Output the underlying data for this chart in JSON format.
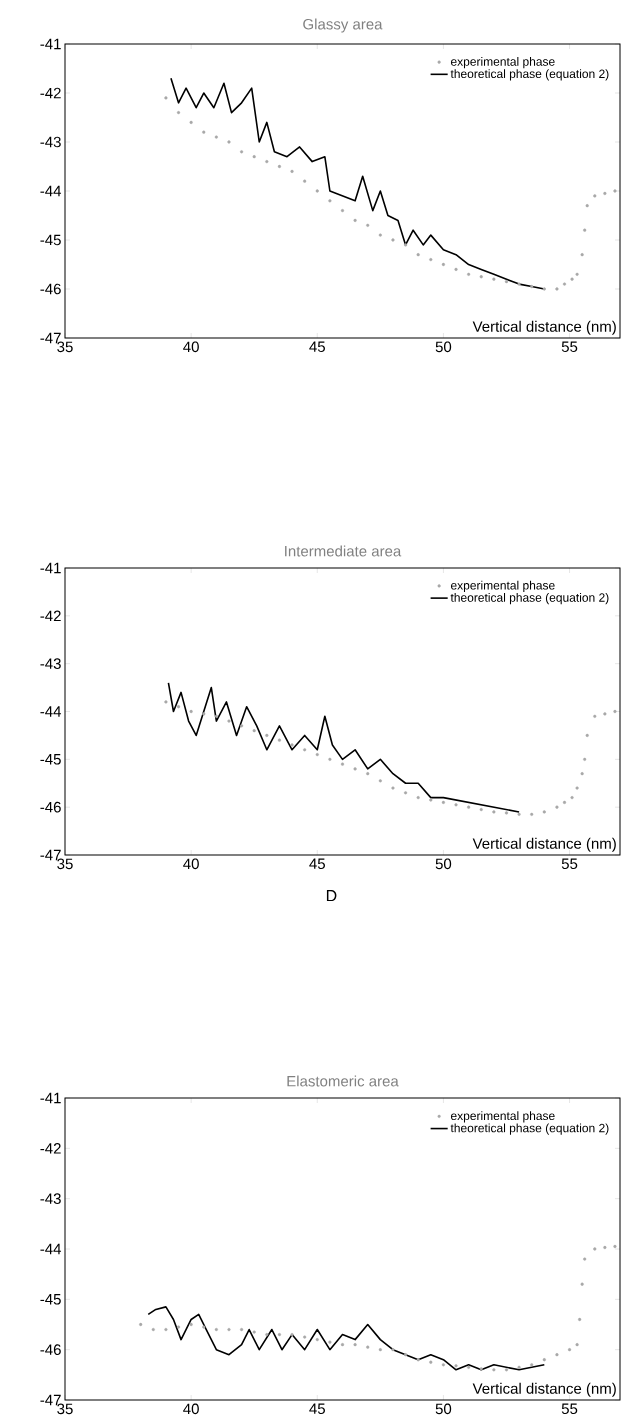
{
  "chart_data": [
    {
      "type": "line",
      "title": "Glassy area",
      "xlabel": "Vertical distance (nm)",
      "xlim": [
        35,
        57
      ],
      "ylim": [
        -47,
        -41
      ],
      "xticks": [
        35,
        40,
        45,
        50,
        55
      ],
      "yticks": [
        -47,
        -46,
        -45,
        -44,
        -43,
        -42,
        -41
      ],
      "legend": "top right",
      "series": [
        {
          "name": "experimental phase",
          "type": "scatter",
          "marker": "circle",
          "color": "#a8a8a8",
          "x": [
            39,
            39.5,
            40,
            40.5,
            41,
            41.5,
            42,
            42.5,
            43,
            43.5,
            44,
            44.5,
            45,
            45.5,
            46,
            46.5,
            47,
            47.5,
            48,
            48.5,
            49,
            49.5,
            50,
            50.5,
            51,
            51.5,
            52,
            52.5,
            53,
            53.5,
            54,
            54.5,
            54.8,
            55.1,
            55.3,
            55.5,
            55.6,
            55.7,
            56,
            56.4,
            56.8
          ],
          "values": [
            -42.1,
            -42.4,
            -42.6,
            -42.8,
            -42.9,
            -43.0,
            -43.2,
            -43.3,
            -43.4,
            -43.5,
            -43.6,
            -43.8,
            -44.0,
            -44.2,
            -44.4,
            -44.6,
            -44.7,
            -44.9,
            -45.0,
            -45.1,
            -45.3,
            -45.4,
            -45.5,
            -45.6,
            -45.7,
            -45.75,
            -45.8,
            -45.85,
            -45.9,
            -45.95,
            -46.0,
            -46.0,
            -45.9,
            -45.8,
            -45.7,
            -45.3,
            -44.8,
            -44.3,
            -44.1,
            -44.05,
            -44.0
          ]
        },
        {
          "name": "theoretical phase (equation 2)",
          "type": "line",
          "marker": "none",
          "color": "#000000",
          "x": [
            39.2,
            39.5,
            39.8,
            40.2,
            40.5,
            40.9,
            41.3,
            41.6,
            42,
            42.4,
            42.7,
            43,
            43.3,
            43.8,
            44.3,
            44.8,
            45.3,
            45.5,
            46,
            46.5,
            46.8,
            47.2,
            47.5,
            47.8,
            48.2,
            48.5,
            48.8,
            49.2,
            49.5,
            50,
            50.5,
            51,
            51.5,
            52,
            52.5,
            53,
            53.5,
            54
          ],
          "values": [
            -41.7,
            -42.2,
            -41.9,
            -42.3,
            -42.0,
            -42.3,
            -41.8,
            -42.4,
            -42.2,
            -41.9,
            -43.0,
            -42.6,
            -43.2,
            -43.3,
            -43.1,
            -43.4,
            -43.3,
            -44.0,
            -44.1,
            -44.2,
            -43.7,
            -44.4,
            -44.0,
            -44.5,
            -44.6,
            -45.1,
            -44.8,
            -45.1,
            -44.9,
            -45.2,
            -45.3,
            -45.5,
            -45.6,
            -45.7,
            -45.8,
            -45.9,
            -45.95,
            -46.0
          ]
        }
      ]
    },
    {
      "type": "line",
      "title": "Intermediate area",
      "xlabel": "Vertical distance (nm)",
      "xlim": [
        35,
        57
      ],
      "ylim": [
        -47,
        -41
      ],
      "xticks": [
        35,
        40,
        45,
        50,
        55
      ],
      "yticks": [
        -47,
        -46,
        -45,
        -44,
        -43,
        -42,
        -41
      ],
      "legend": "top right",
      "annotations": [
        "D"
      ],
      "series": [
        {
          "name": "experimental phase",
          "type": "scatter",
          "marker": "circle",
          "color": "#a8a8a8",
          "x": [
            39,
            39.5,
            40,
            40.5,
            41,
            41.5,
            42,
            42.5,
            43,
            43.5,
            44,
            44.5,
            45,
            45.5,
            46,
            46.5,
            47,
            47.5,
            48,
            48.5,
            49,
            49.5,
            50,
            50.5,
            51,
            51.5,
            52,
            52.5,
            53,
            53.5,
            54,
            54.5,
            54.8,
            55.1,
            55.3,
            55.5,
            55.6,
            55.7,
            56,
            56.4,
            56.8
          ],
          "values": [
            -43.8,
            -43.9,
            -44.0,
            -44.05,
            -44.1,
            -44.2,
            -44.3,
            -44.4,
            -44.5,
            -44.6,
            -44.7,
            -44.8,
            -44.9,
            -45.0,
            -45.1,
            -45.2,
            -45.3,
            -45.45,
            -45.6,
            -45.7,
            -45.8,
            -45.85,
            -45.9,
            -45.95,
            -46.0,
            -46.05,
            -46.1,
            -46.12,
            -46.15,
            -46.15,
            -46.1,
            -46.0,
            -45.9,
            -45.8,
            -45.6,
            -45.3,
            -45.0,
            -44.5,
            -44.1,
            -44.05,
            -44.0
          ]
        },
        {
          "name": "theoretical phase (equation 2)",
          "type": "line",
          "marker": "none",
          "color": "#000000",
          "x": [
            39.1,
            39.3,
            39.6,
            39.9,
            40.2,
            40.5,
            40.8,
            41,
            41.4,
            41.8,
            42.2,
            42.6,
            43,
            43.5,
            44,
            44.5,
            45,
            45.3,
            45.6,
            46,
            46.5,
            47,
            47.5,
            48,
            48.5,
            49,
            49.5,
            50,
            51,
            52,
            53
          ],
          "values": [
            -43.4,
            -44.0,
            -43.6,
            -44.2,
            -44.5,
            -44.0,
            -43.5,
            -44.2,
            -43.8,
            -44.5,
            -43.9,
            -44.3,
            -44.8,
            -44.3,
            -44.8,
            -44.5,
            -44.8,
            -44.1,
            -44.7,
            -45.0,
            -44.8,
            -45.2,
            -45.0,
            -45.3,
            -45.5,
            -45.5,
            -45.8,
            -45.8,
            -45.9,
            -46.0,
            -46.1
          ]
        }
      ]
    },
    {
      "type": "line",
      "title": "Elastomeric area",
      "xlabel": "Vertical distance (nm)",
      "xlim": [
        35,
        57
      ],
      "ylim": [
        -47,
        -41
      ],
      "xticks": [
        35,
        40,
        45,
        50,
        55
      ],
      "yticks": [
        -47,
        -46,
        -45,
        -44,
        -43,
        -42,
        -41
      ],
      "legend": "top right",
      "series": [
        {
          "name": "experimental phase",
          "type": "scatter",
          "marker": "circle",
          "color": "#a8a8a8",
          "x": [
            38,
            38.5,
            39,
            39.5,
            40,
            40.5,
            41,
            41.5,
            42,
            42.5,
            43,
            43.5,
            44,
            44.5,
            45,
            45.5,
            46,
            46.5,
            47,
            47.5,
            48,
            48.5,
            49,
            49.5,
            50,
            50.5,
            51,
            51.5,
            52,
            52.5,
            53,
            53.5,
            54,
            54.5,
            55,
            55.3,
            55.4,
            55.5,
            55.6,
            56,
            56.4,
            56.8
          ],
          "values": [
            -45.5,
            -45.6,
            -45.6,
            -45.55,
            -45.5,
            -45.55,
            -45.6,
            -45.6,
            -45.6,
            -45.65,
            -45.7,
            -45.7,
            -45.7,
            -45.75,
            -45.8,
            -45.85,
            -45.9,
            -45.9,
            -45.95,
            -46.0,
            -46.0,
            -46.1,
            -46.2,
            -46.25,
            -46.3,
            -46.32,
            -46.35,
            -46.38,
            -46.4,
            -46.4,
            -46.35,
            -46.3,
            -46.2,
            -46.1,
            -46.0,
            -45.9,
            -45.4,
            -44.7,
            -44.2,
            -44.0,
            -43.97,
            -43.95
          ]
        },
        {
          "name": "theoretical phase (equation 2)",
          "type": "line",
          "marker": "none",
          "color": "#000000",
          "x": [
            38.3,
            38.6,
            39,
            39.3,
            39.6,
            40,
            40.3,
            40.6,
            41,
            41.5,
            42,
            42.3,
            42.7,
            43.2,
            43.6,
            44,
            44.5,
            45,
            45.5,
            46,
            46.5,
            47,
            47.5,
            48,
            48.5,
            49,
            49.5,
            50,
            50.5,
            51,
            51.5,
            52,
            53,
            54
          ],
          "values": [
            -45.3,
            -45.2,
            -45.15,
            -45.4,
            -45.8,
            -45.4,
            -45.3,
            -45.6,
            -46.0,
            -46.1,
            -45.9,
            -45.6,
            -46.0,
            -45.6,
            -46.0,
            -45.7,
            -46.0,
            -45.6,
            -46.0,
            -45.7,
            -45.8,
            -45.5,
            -45.8,
            -46.0,
            -46.1,
            -46.2,
            -46.1,
            -46.2,
            -46.4,
            -46.3,
            -46.4,
            -46.3,
            -46.4,
            -46.3
          ]
        }
      ]
    }
  ]
}
